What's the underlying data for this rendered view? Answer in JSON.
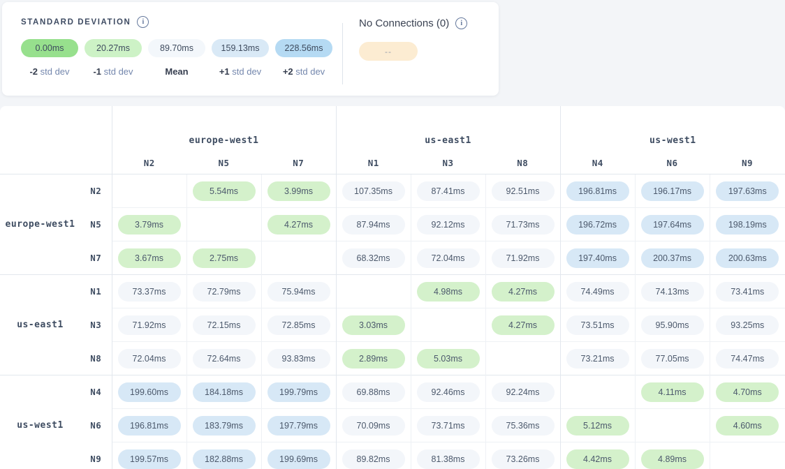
{
  "legend": {
    "title": "STANDARD DEVIATION",
    "stops": [
      {
        "value": "0.00ms",
        "label_bold": "-2",
        "label_rest": "std dev",
        "color": "#97e08d"
      },
      {
        "value": "20.27ms",
        "label_bold": "-1",
        "label_rest": "std dev",
        "color": "#cdf2c6"
      },
      {
        "value": "89.70ms",
        "label_bold": "Mean",
        "label_rest": "",
        "color": "#f3f7fb"
      },
      {
        "value": "159.13ms",
        "label_bold": "+1",
        "label_rest": "std dev",
        "color": "#d9e9f6"
      },
      {
        "value": "228.56ms",
        "label_bold": "+2",
        "label_rest": "std dev",
        "color": "#b5daf3"
      }
    ],
    "no_connections": {
      "label": "No Connections (0)",
      "pill_text": "--",
      "pill_color": "#fcecd2"
    }
  },
  "matrix": {
    "palette": {
      "green": "#d4f1cb",
      "neutral": "#f3f6fa",
      "blue": "#d7e8f6"
    },
    "column_groups": [
      {
        "region": "europe-west1",
        "nodes": [
          "N2",
          "N5",
          "N7"
        ]
      },
      {
        "region": "us-east1",
        "nodes": [
          "N1",
          "N3",
          "N8"
        ]
      },
      {
        "region": "us-west1",
        "nodes": [
          "N4",
          "N6",
          "N9"
        ]
      }
    ],
    "row_groups": [
      {
        "region": "europe-west1",
        "rows": [
          {
            "node": "N2",
            "cells": [
              null,
              {
                "v": "5.54ms",
                "c": "green"
              },
              {
                "v": "3.99ms",
                "c": "green"
              },
              {
                "v": "107.35ms",
                "c": "neutral"
              },
              {
                "v": "87.41ms",
                "c": "neutral"
              },
              {
                "v": "92.51ms",
                "c": "neutral"
              },
              {
                "v": "196.81ms",
                "c": "blue"
              },
              {
                "v": "196.17ms",
                "c": "blue"
              },
              {
                "v": "197.63ms",
                "c": "blue"
              }
            ]
          },
          {
            "node": "N5",
            "cells": [
              {
                "v": "3.79ms",
                "c": "green"
              },
              null,
              {
                "v": "4.27ms",
                "c": "green"
              },
              {
                "v": "87.94ms",
                "c": "neutral"
              },
              {
                "v": "92.12ms",
                "c": "neutral"
              },
              {
                "v": "71.73ms",
                "c": "neutral"
              },
              {
                "v": "196.72ms",
                "c": "blue"
              },
              {
                "v": "197.64ms",
                "c": "blue"
              },
              {
                "v": "198.19ms",
                "c": "blue"
              }
            ]
          },
          {
            "node": "N7",
            "cells": [
              {
                "v": "3.67ms",
                "c": "green"
              },
              {
                "v": "2.75ms",
                "c": "green"
              },
              null,
              {
                "v": "68.32ms",
                "c": "neutral"
              },
              {
                "v": "72.04ms",
                "c": "neutral"
              },
              {
                "v": "71.92ms",
                "c": "neutral"
              },
              {
                "v": "197.40ms",
                "c": "blue"
              },
              {
                "v": "200.37ms",
                "c": "blue"
              },
              {
                "v": "200.63ms",
                "c": "blue"
              }
            ]
          }
        ]
      },
      {
        "region": "us-east1",
        "rows": [
          {
            "node": "N1",
            "cells": [
              {
                "v": "73.37ms",
                "c": "neutral"
              },
              {
                "v": "72.79ms",
                "c": "neutral"
              },
              {
                "v": "75.94ms",
                "c": "neutral"
              },
              null,
              {
                "v": "4.98ms",
                "c": "green"
              },
              {
                "v": "4.27ms",
                "c": "green"
              },
              {
                "v": "74.49ms",
                "c": "neutral"
              },
              {
                "v": "74.13ms",
                "c": "neutral"
              },
              {
                "v": "73.41ms",
                "c": "neutral"
              }
            ]
          },
          {
            "node": "N3",
            "cells": [
              {
                "v": "71.92ms",
                "c": "neutral"
              },
              {
                "v": "72.15ms",
                "c": "neutral"
              },
              {
                "v": "72.85ms",
                "c": "neutral"
              },
              {
                "v": "3.03ms",
                "c": "green"
              },
              null,
              {
                "v": "4.27ms",
                "c": "green"
              },
              {
                "v": "73.51ms",
                "c": "neutral"
              },
              {
                "v": "95.90ms",
                "c": "neutral"
              },
              {
                "v": "93.25ms",
                "c": "neutral"
              }
            ]
          },
          {
            "node": "N8",
            "cells": [
              {
                "v": "72.04ms",
                "c": "neutral"
              },
              {
                "v": "72.64ms",
                "c": "neutral"
              },
              {
                "v": "93.83ms",
                "c": "neutral"
              },
              {
                "v": "2.89ms",
                "c": "green"
              },
              {
                "v": "5.03ms",
                "c": "green"
              },
              null,
              {
                "v": "73.21ms",
                "c": "neutral"
              },
              {
                "v": "77.05ms",
                "c": "neutral"
              },
              {
                "v": "74.47ms",
                "c": "neutral"
              }
            ]
          }
        ]
      },
      {
        "region": "us-west1",
        "rows": [
          {
            "node": "N4",
            "cells": [
              {
                "v": "199.60ms",
                "c": "blue"
              },
              {
                "v": "184.18ms",
                "c": "blue"
              },
              {
                "v": "199.79ms",
                "c": "blue"
              },
              {
                "v": "69.88ms",
                "c": "neutral"
              },
              {
                "v": "92.46ms",
                "c": "neutral"
              },
              {
                "v": "92.24ms",
                "c": "neutral"
              },
              null,
              {
                "v": "4.11ms",
                "c": "green"
              },
              {
                "v": "4.70ms",
                "c": "green"
              }
            ]
          },
          {
            "node": "N6",
            "cells": [
              {
                "v": "196.81ms",
                "c": "blue"
              },
              {
                "v": "183.79ms",
                "c": "blue"
              },
              {
                "v": "197.79ms",
                "c": "blue"
              },
              {
                "v": "70.09ms",
                "c": "neutral"
              },
              {
                "v": "73.71ms",
                "c": "neutral"
              },
              {
                "v": "75.36ms",
                "c": "neutral"
              },
              {
                "v": "5.12ms",
                "c": "green"
              },
              null,
              {
                "v": "4.60ms",
                "c": "green"
              }
            ]
          },
          {
            "node": "N9",
            "cells": [
              {
                "v": "199.57ms",
                "c": "blue"
              },
              {
                "v": "182.88ms",
                "c": "blue"
              },
              {
                "v": "199.69ms",
                "c": "blue"
              },
              {
                "v": "89.82ms",
                "c": "neutral"
              },
              {
                "v": "81.38ms",
                "c": "neutral"
              },
              {
                "v": "73.26ms",
                "c": "neutral"
              },
              {
                "v": "4.42ms",
                "c": "green"
              },
              {
                "v": "4.89ms",
                "c": "green"
              },
              null
            ]
          }
        ]
      }
    ]
  }
}
